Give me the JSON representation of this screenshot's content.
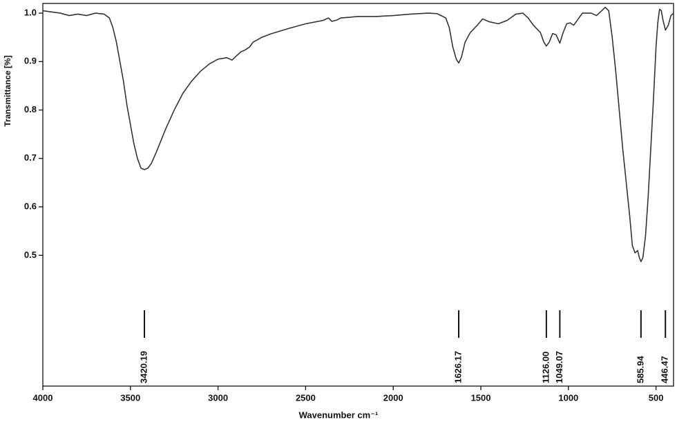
{
  "chart_data": {
    "type": "line",
    "xlabel": "Wavenumber cm⁻¹",
    "ylabel": "Transmittance [%]",
    "xlim": [
      4000,
      400
    ],
    "xticks": [
      4000,
      3500,
      3000,
      2500,
      2000,
      1500,
      1000,
      500
    ],
    "ylim": [
      0.23,
      1.02
    ],
    "yticks": [
      0.5,
      0.6,
      0.7,
      0.8,
      0.9,
      {
        "value": 1.0,
        "label": "1.0"
      }
    ],
    "color": "#333333",
    "x": [
      4000,
      3900,
      3850,
      3800,
      3750,
      3700,
      3650,
      3620,
      3600,
      3580,
      3560,
      3540,
      3520,
      3500,
      3480,
      3460,
      3440,
      3420,
      3400,
      3380,
      3350,
      3300,
      3250,
      3200,
      3150,
      3100,
      3050,
      3000,
      2950,
      2920,
      2900,
      2870,
      2850,
      2820,
      2800,
      2750,
      2700,
      2600,
      2500,
      2400,
      2370,
      2350,
      2320,
      2300,
      2200,
      2100,
      2000,
      1900,
      1800,
      1750,
      1700,
      1680,
      1660,
      1640,
      1626,
      1610,
      1590,
      1560,
      1520,
      1490,
      1450,
      1400,
      1350,
      1300,
      1260,
      1230,
      1200,
      1160,
      1140,
      1126,
      1110,
      1090,
      1070,
      1049,
      1030,
      1010,
      990,
      970,
      950,
      920,
      870,
      840,
      810,
      790,
      770,
      750,
      730,
      710,
      690,
      670,
      650,
      635,
      620,
      605,
      595,
      586,
      575,
      560,
      545,
      530,
      515,
      500,
      490,
      480,
      470,
      460,
      446,
      430,
      415,
      400
    ],
    "values": [
      1.005,
      1.0,
      0.995,
      0.998,
      0.995,
      1.0,
      0.998,
      0.99,
      0.97,
      0.94,
      0.9,
      0.86,
      0.81,
      0.77,
      0.73,
      0.7,
      0.68,
      0.677,
      0.68,
      0.69,
      0.715,
      0.76,
      0.8,
      0.835,
      0.86,
      0.88,
      0.895,
      0.905,
      0.908,
      0.903,
      0.91,
      0.92,
      0.923,
      0.93,
      0.94,
      0.95,
      0.957,
      0.968,
      0.978,
      0.985,
      0.99,
      0.983,
      0.986,
      0.99,
      0.993,
      0.993,
      0.995,
      0.998,
      1.0,
      0.999,
      0.99,
      0.97,
      0.93,
      0.905,
      0.897,
      0.91,
      0.94,
      0.96,
      0.975,
      0.988,
      0.982,
      0.978,
      0.985,
      0.998,
      1.0,
      0.99,
      0.975,
      0.96,
      0.94,
      0.932,
      0.94,
      0.958,
      0.955,
      0.938,
      0.96,
      0.978,
      0.98,
      0.975,
      0.985,
      1.0,
      1.0,
      0.995,
      1.005,
      1.012,
      1.005,
      0.95,
      0.88,
      0.8,
      0.72,
      0.65,
      0.58,
      0.52,
      0.505,
      0.51,
      0.495,
      0.487,
      0.495,
      0.54,
      0.62,
      0.72,
      0.82,
      0.93,
      0.98,
      1.008,
      1.005,
      0.985,
      0.965,
      0.975,
      0.995,
      1.0
    ],
    "peaks": [
      3420.19,
      1626.17,
      {
        "value": 1126.0,
        "label": "1126.00"
      },
      1049.07,
      585.94,
      446.47
    ]
  }
}
